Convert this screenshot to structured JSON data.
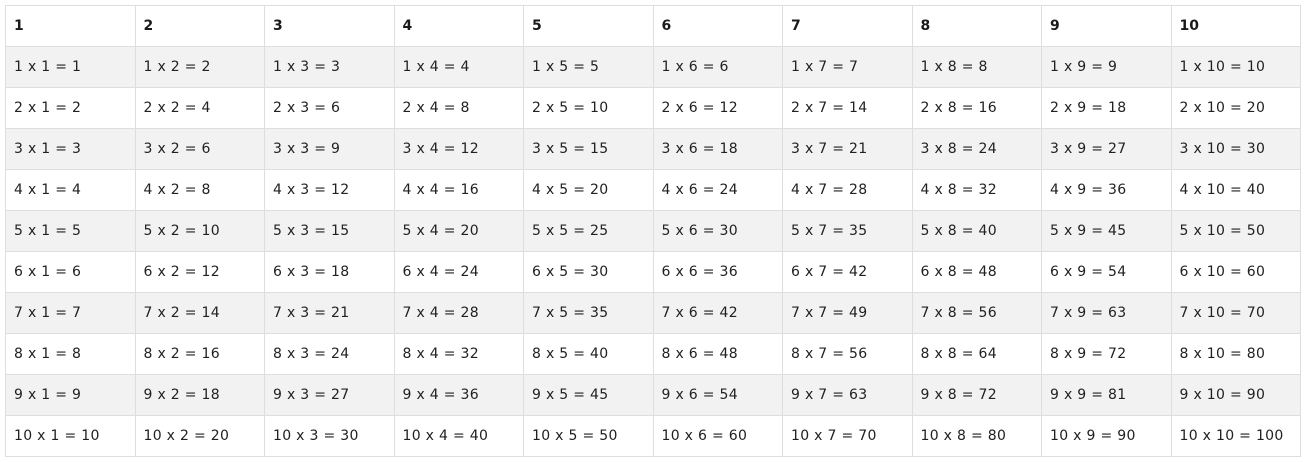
{
  "table": {
    "headers": [
      "1",
      "2",
      "3",
      "4",
      "5",
      "6",
      "7",
      "8",
      "9",
      "10"
    ],
    "rows": [
      [
        "1 x 1 = 1",
        "1 x 2 = 2",
        "1 x 3 = 3",
        "1 x 4 = 4",
        "1 x 5 = 5",
        "1 x 6 = 6",
        "1 x 7 = 7",
        "1 x 8 = 8",
        "1 x 9 = 9",
        "1 x 10 = 10"
      ],
      [
        "2 x 1 = 2",
        "2 x 2 = 4",
        "2 x 3 = 6",
        "2 x 4 = 8",
        "2 x 5 = 10",
        "2 x 6 = 12",
        "2 x 7 = 14",
        "2 x 8 = 16",
        "2 x 9 = 18",
        "2 x 10 = 20"
      ],
      [
        "3 x 1 = 3",
        "3 x 2 = 6",
        "3 x 3 = 9",
        "3 x 4 = 12",
        "3 x 5 = 15",
        "3 x 6 = 18",
        "3 x 7 = 21",
        "3 x 8 = 24",
        "3 x 9 = 27",
        "3 x 10 = 30"
      ],
      [
        "4 x 1 = 4",
        "4 x 2 = 8",
        "4 x 3 = 12",
        "4 x 4 = 16",
        "4 x 5 = 20",
        "4 x 6 = 24",
        "4 x 7 = 28",
        "4 x 8 = 32",
        "4 x 9 = 36",
        "4 x 10 = 40"
      ],
      [
        "5 x 1 = 5",
        "5 x 2 = 10",
        "5 x 3 = 15",
        "5 x 4 = 20",
        "5 x 5 = 25",
        "5 x 6 = 30",
        "5 x 7 = 35",
        "5 x 8 = 40",
        "5 x 9 = 45",
        "5 x 10 = 50"
      ],
      [
        "6 x 1 = 6",
        "6 x 2 = 12",
        "6 x 3 = 18",
        "6 x 4 = 24",
        "6 x 5 = 30",
        "6 x 6 = 36",
        "6 x 7 = 42",
        "6 x 8 = 48",
        "6 x 9 = 54",
        "6 x 10 = 60"
      ],
      [
        "7 x 1 = 7",
        "7 x 2 = 14",
        "7 x 3 = 21",
        "7 x 4 = 28",
        "7 x 5 = 35",
        "7 x 6 = 42",
        "7 x 7 = 49",
        "7 x 8 = 56",
        "7 x 9 = 63",
        "7 x 10 = 70"
      ],
      [
        "8 x 1 = 8",
        "8 x 2 = 16",
        "8 x 3 = 24",
        "8 x 4 = 32",
        "8 x 5 = 40",
        "8 x 6 = 48",
        "8 x 7 = 56",
        "8 x 8 = 64",
        "8 x 9 = 72",
        "8 x 10 = 80"
      ],
      [
        "9 x 1 = 9",
        "9 x 2 = 18",
        "9 x 3 = 27",
        "9 x 4 = 36",
        "9 x 5 = 45",
        "9 x 6 = 54",
        "9 x 7 = 63",
        "9 x 8 = 72",
        "9 x 9 = 81",
        "9 x 10 = 90"
      ],
      [
        "10 x 1 = 10",
        "10 x 2 = 20",
        "10 x 3 = 30",
        "10 x 4 = 40",
        "10 x 5 = 50",
        "10 x 6 = 60",
        "10 x 7 = 70",
        "10 x 8 = 80",
        "10 x 9 = 90",
        "10 x 10 = 100"
      ]
    ]
  },
  "colors": {
    "stripe": "#f2f2f2",
    "border": "#dedede",
    "text": "#212121"
  }
}
